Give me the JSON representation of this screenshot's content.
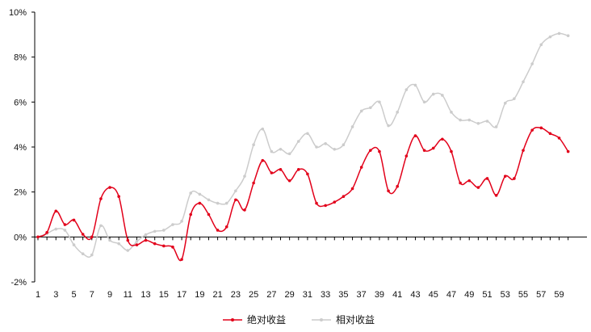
{
  "chart_data": {
    "type": "line",
    "x": [
      1,
      2,
      3,
      4,
      5,
      6,
      7,
      8,
      9,
      10,
      11,
      12,
      13,
      14,
      15,
      16,
      17,
      18,
      19,
      20,
      21,
      22,
      23,
      24,
      25,
      26,
      27,
      28,
      29,
      30,
      31,
      32,
      33,
      34,
      35,
      36,
      37,
      38,
      39,
      40,
      41,
      42,
      43,
      44,
      45,
      46,
      47,
      48,
      49,
      50,
      51,
      52,
      53,
      54,
      55,
      56,
      57,
      58,
      59,
      60
    ],
    "x_tick_labels": [
      "1",
      "3",
      "5",
      "7",
      "9",
      "11",
      "13",
      "15",
      "17",
      "19",
      "21",
      "23",
      "25",
      "27",
      "29",
      "31",
      "33",
      "35",
      "37",
      "39",
      "41",
      "43",
      "45",
      "47",
      "49",
      "51",
      "53",
      "55",
      "57",
      "59"
    ],
    "ylim": [
      -2,
      10
    ],
    "y_tick_labels": [
      "-2%",
      "0%",
      "2%",
      "4%",
      "6%",
      "8%",
      "10%"
    ],
    "y_ticks": [
      -2,
      0,
      2,
      4,
      6,
      8,
      10
    ],
    "legend": {
      "placement": "bottom-center"
    },
    "grid": false,
    "series": [
      {
        "name": "绝对收益",
        "color": "#e2001a",
        "values": [
          0,
          0.2,
          1.15,
          0.55,
          0.75,
          0.12,
          0,
          1.7,
          2.2,
          1.8,
          -0.15,
          -0.35,
          -0.15,
          -0.3,
          -0.4,
          -0.45,
          -1.0,
          1.0,
          1.5,
          1.0,
          0.3,
          0.45,
          1.65,
          1.2,
          2.4,
          3.4,
          2.85,
          3.0,
          2.5,
          3.0,
          2.8,
          1.5,
          1.4,
          1.55,
          1.8,
          2.15,
          3.1,
          3.85,
          3.8,
          2.05,
          2.25,
          3.6,
          4.5,
          3.85,
          3.95,
          4.35,
          3.8,
          2.4,
          2.5,
          2.2,
          2.6,
          1.85,
          2.7,
          2.6,
          3.85,
          4.75,
          4.85,
          4.6,
          4.4,
          3.8
        ]
      },
      {
        "name": "相对收益",
        "color": "#cccccc",
        "values": [
          0,
          0.15,
          0.35,
          0.3,
          -0.35,
          -0.75,
          -0.8,
          0.5,
          -0.15,
          -0.3,
          -0.6,
          -0.2,
          0.1,
          0.25,
          0.3,
          0.55,
          0.7,
          1.95,
          1.9,
          1.65,
          1.5,
          1.5,
          2.05,
          2.7,
          4.1,
          4.8,
          3.8,
          3.9,
          3.7,
          4.25,
          4.6,
          4.0,
          4.15,
          3.9,
          4.1,
          4.9,
          5.6,
          5.75,
          6.0,
          4.95,
          5.55,
          6.55,
          6.75,
          6.0,
          6.35,
          6.3,
          5.55,
          5.2,
          5.2,
          5.05,
          5.15,
          4.9,
          5.95,
          6.15,
          6.9,
          7.7,
          8.55,
          8.9,
          9.05,
          8.95
        ]
      }
    ]
  }
}
